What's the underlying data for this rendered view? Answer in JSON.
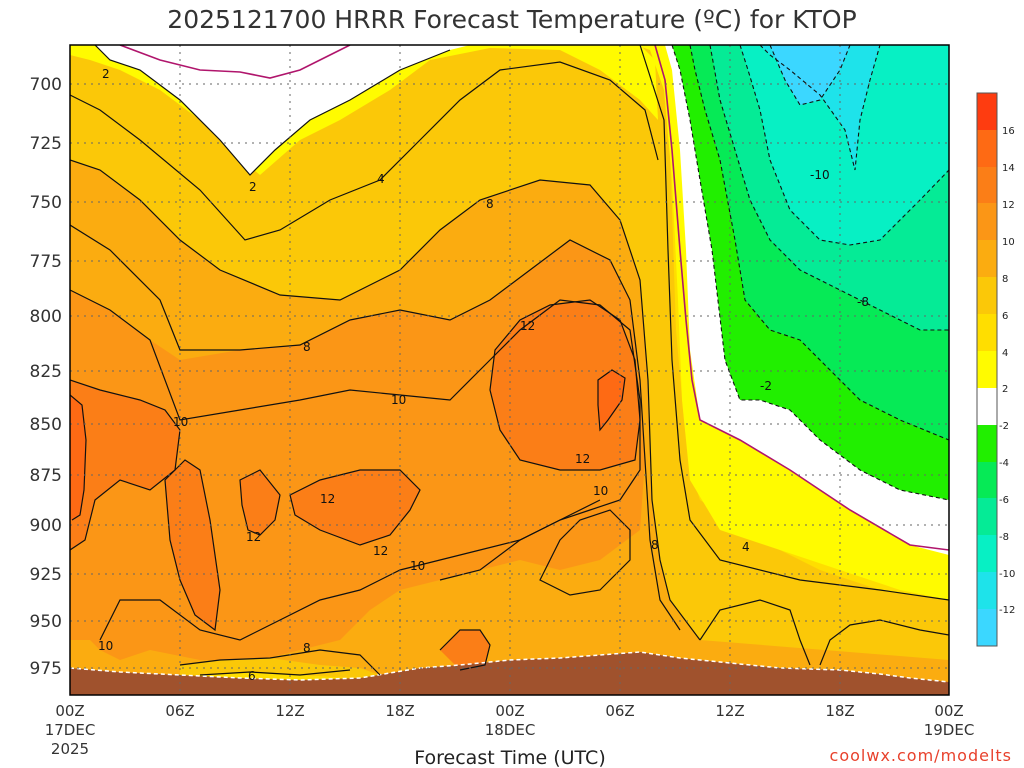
{
  "chart_data": {
    "type": "heatmap",
    "title": "2025121700 HRRR Forecast Temperature (ºC) for KTOP",
    "xlabel": "Forecast Time (UTC)",
    "ylabel": "",
    "credit": "coolwx.com/modelts",
    "x_ticks": [
      {
        "hour": 0,
        "line1": "00Z",
        "line2": "17DEC",
        "line3": "2025"
      },
      {
        "hour": 6,
        "line1": "06Z"
      },
      {
        "hour": 12,
        "line1": "12Z"
      },
      {
        "hour": 18,
        "line1": "18Z"
      },
      {
        "hour": 24,
        "line1": "00Z",
        "line2": "18DEC"
      },
      {
        "hour": 30,
        "line1": "06Z"
      },
      {
        "hour": 36,
        "line1": "12Z"
      },
      {
        "hour": 42,
        "line1": "18Z"
      },
      {
        "hour": 48,
        "line1": "00Z",
        "line2": "19DEC"
      }
    ],
    "xlim": [
      0,
      48
    ],
    "y_ticks": [
      "700",
      "725",
      "750",
      "775",
      "800",
      "825",
      "850",
      "875",
      "900",
      "925",
      "950",
      "975"
    ],
    "ylim": [
      985,
      685
    ],
    "y_inverted": true,
    "grid": true,
    "colorbar": {
      "labels": [
        "16",
        "14",
        "12",
        "10",
        "8",
        "6",
        "4",
        "2",
        "-2",
        "-4",
        "-6",
        "-8",
        "-10",
        "-12"
      ],
      "colors": [
        "#fe3c10",
        "#fe6a14",
        "#fb7e17",
        "#fb9616",
        "#fbac10",
        "#fbc808",
        "#ffde00",
        "#fffb00",
        "#ffffff",
        "#21ef00",
        "#06ea56",
        "#05eb96",
        "#07f0c4",
        "#1ee3ea",
        "#3bd7ff"
      ]
    },
    "contour_labels": [
      "2",
      "2",
      "4",
      "8",
      "-10",
      "-8",
      "8",
      "12",
      "-2",
      "10",
      "10",
      "12",
      "12",
      "12",
      "12",
      "10",
      "8",
      "4",
      "10",
      "8",
      "6",
      "10"
    ],
    "terrain_color": "#a0522d"
  }
}
